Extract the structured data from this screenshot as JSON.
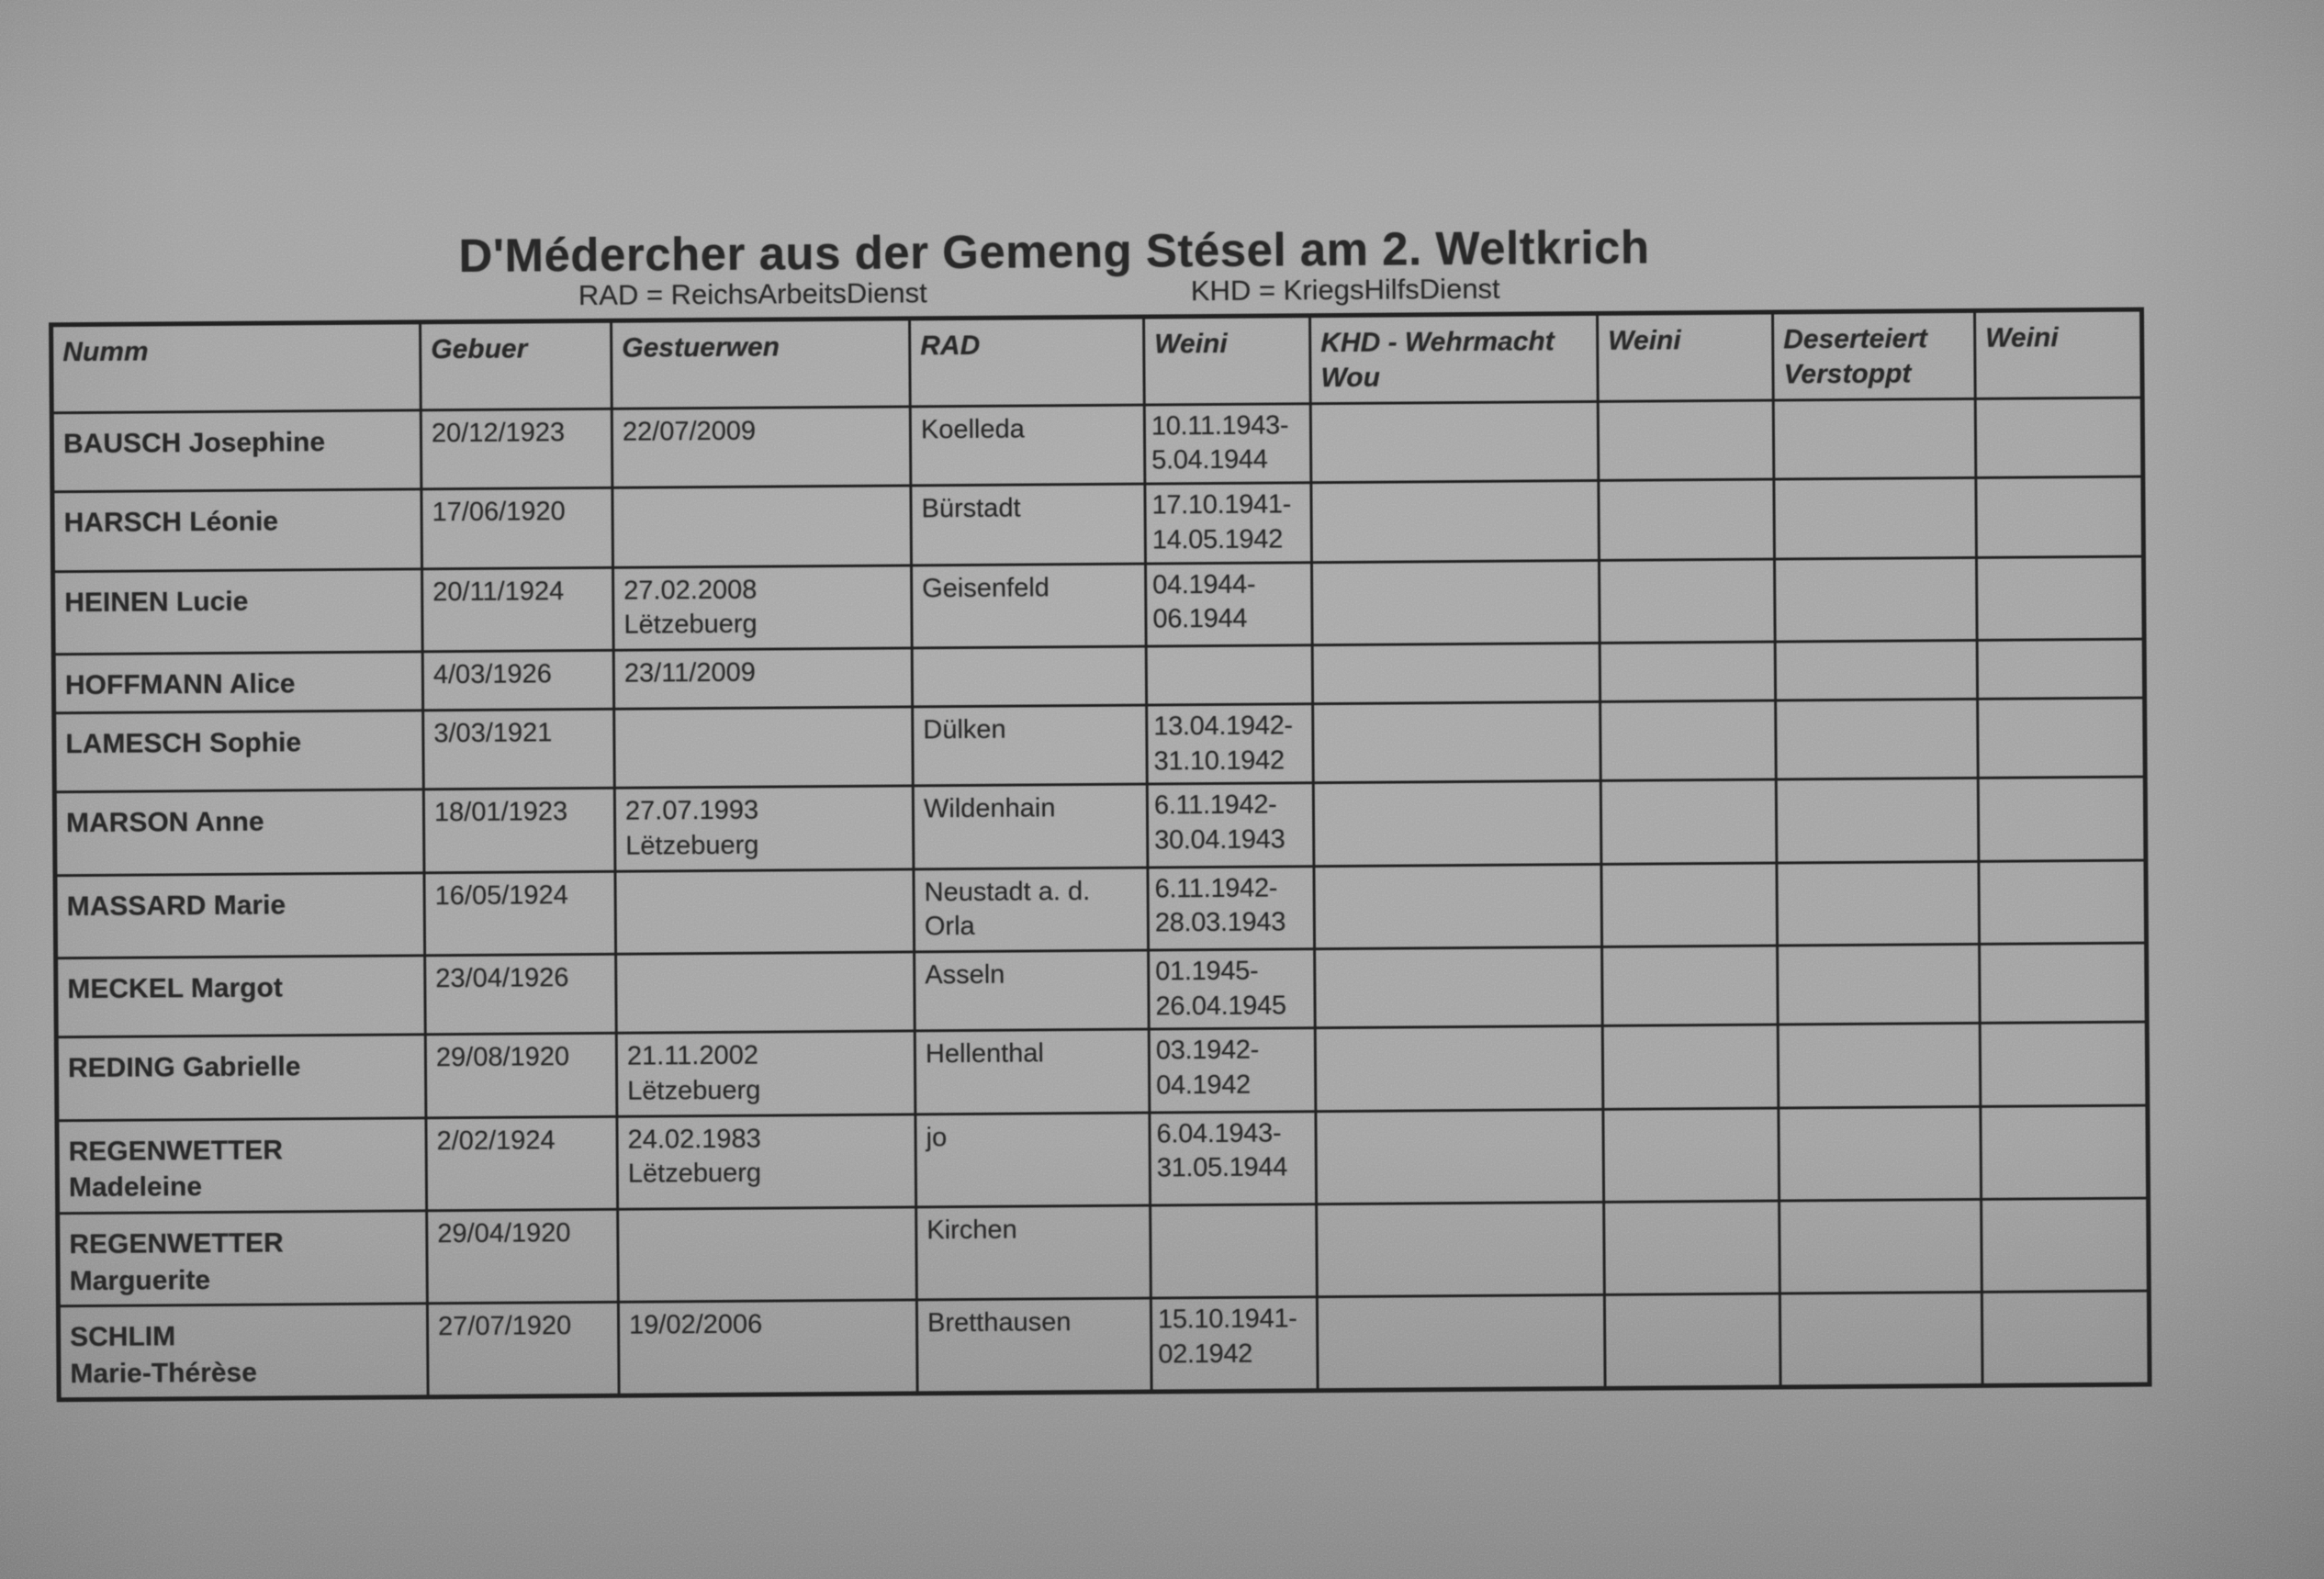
{
  "title": "D'Médercher aus der Gemeng Stésel am 2. Weltkrich",
  "legend": {
    "rad": "RAD = ReichsArbeitsDienst",
    "khd": "KHD = KriegsHilfsDienst"
  },
  "colors": {
    "paper": "#9e9e9e",
    "ink": "#262626",
    "line": "#1f1f1f"
  },
  "table": {
    "columns": [
      {
        "key": "numm",
        "label": "Numm"
      },
      {
        "key": "gebuer",
        "label": "Gebuer"
      },
      {
        "key": "gestuerwen",
        "label": "Gestuerwen"
      },
      {
        "key": "rad",
        "label": "RAD"
      },
      {
        "key": "weini_rad",
        "label": "Weini"
      },
      {
        "key": "khd_wou",
        "label": "KHD - Wehrmacht\nWou"
      },
      {
        "key": "weini_khd",
        "label": "Weini"
      },
      {
        "key": "deserteiert",
        "label": "Deserteiert\nVerstoppt"
      },
      {
        "key": "weini_des",
        "label": "Weini"
      }
    ],
    "rows": [
      {
        "numm": "BAUSCH Josephine",
        "gebuer": "20/12/1923",
        "gestuerwen": "22/07/2009",
        "rad": "Koelleda",
        "weini_rad": "10.11.1943-\n5.04.1944",
        "khd_wou": "",
        "weini_khd": "",
        "deserteiert": "",
        "weini_des": ""
      },
      {
        "numm": "HARSCH Léonie",
        "gebuer": "17/06/1920",
        "gestuerwen": "",
        "rad": "Bürstadt",
        "weini_rad": "17.10.1941-\n14.05.1942",
        "khd_wou": "",
        "weini_khd": "",
        "deserteiert": "",
        "weini_des": ""
      },
      {
        "numm": "HEINEN Lucie",
        "gebuer": "20/11/1924",
        "gestuerwen": "27.02.2008\nLëtzebuerg",
        "rad": "Geisenfeld",
        "weini_rad": "04.1944-\n06.1944",
        "khd_wou": "",
        "weini_khd": "",
        "deserteiert": "",
        "weini_des": ""
      },
      {
        "numm": "HOFFMANN Alice",
        "gebuer": "4/03/1926",
        "gestuerwen": "23/11/2009",
        "rad": "",
        "weini_rad": "",
        "khd_wou": "",
        "weini_khd": "",
        "deserteiert": "",
        "weini_des": ""
      },
      {
        "numm": "LAMESCH Sophie",
        "gebuer": "3/03/1921",
        "gestuerwen": "",
        "rad": "Dülken",
        "weini_rad": "13.04.1942-\n31.10.1942",
        "khd_wou": "",
        "weini_khd": "",
        "deserteiert": "",
        "weini_des": ""
      },
      {
        "numm": "MARSON Anne",
        "gebuer": "18/01/1923",
        "gestuerwen": "27.07.1993\nLëtzebuerg",
        "rad": "Wildenhain",
        "weini_rad": "6.11.1942-\n30.04.1943",
        "khd_wou": "",
        "weini_khd": "",
        "deserteiert": "",
        "weini_des": ""
      },
      {
        "numm": "MASSARD Marie",
        "gebuer": "16/05/1924",
        "gestuerwen": "",
        "rad": "Neustadt a. d.\nOrla",
        "weini_rad": "6.11.1942-\n28.03.1943",
        "khd_wou": "",
        "weini_khd": "",
        "deserteiert": "",
        "weini_des": ""
      },
      {
        "numm": "MECKEL Margot",
        "gebuer": "23/04/1926",
        "gestuerwen": "",
        "rad": "Asseln",
        "weini_rad": "01.1945-\n26.04.1945",
        "khd_wou": "",
        "weini_khd": "",
        "deserteiert": "",
        "weini_des": ""
      },
      {
        "numm": "REDING Gabrielle",
        "gebuer": "29/08/1920",
        "gestuerwen": "21.11.2002\nLëtzebuerg",
        "rad": "Hellenthal",
        "weini_rad": "03.1942-\n04.1942",
        "khd_wou": "",
        "weini_khd": "",
        "deserteiert": "",
        "weini_des": ""
      },
      {
        "numm": "REGENWETTER\nMadeleine",
        "gebuer": "2/02/1924",
        "gestuerwen": "24.02.1983\nLëtzebuerg",
        "rad": "jo",
        "weini_rad": "6.04.1943-\n31.05.1944",
        "khd_wou": "",
        "weini_khd": "",
        "deserteiert": "",
        "weini_des": ""
      },
      {
        "numm": "REGENWETTER\nMarguerite",
        "gebuer": "29/04/1920",
        "gestuerwen": "",
        "rad": "Kirchen",
        "weini_rad": "",
        "khd_wou": "",
        "weini_khd": "",
        "deserteiert": "",
        "weini_des": ""
      },
      {
        "numm": "SCHLIM\nMarie-Thérèse",
        "gebuer": "27/07/1920",
        "gestuerwen": "19/02/2006",
        "rad": "Bretthausen",
        "weini_rad": "15.10.1941-\n02.1942",
        "khd_wou": "",
        "weini_khd": "",
        "deserteiert": "",
        "weini_des": ""
      }
    ]
  }
}
